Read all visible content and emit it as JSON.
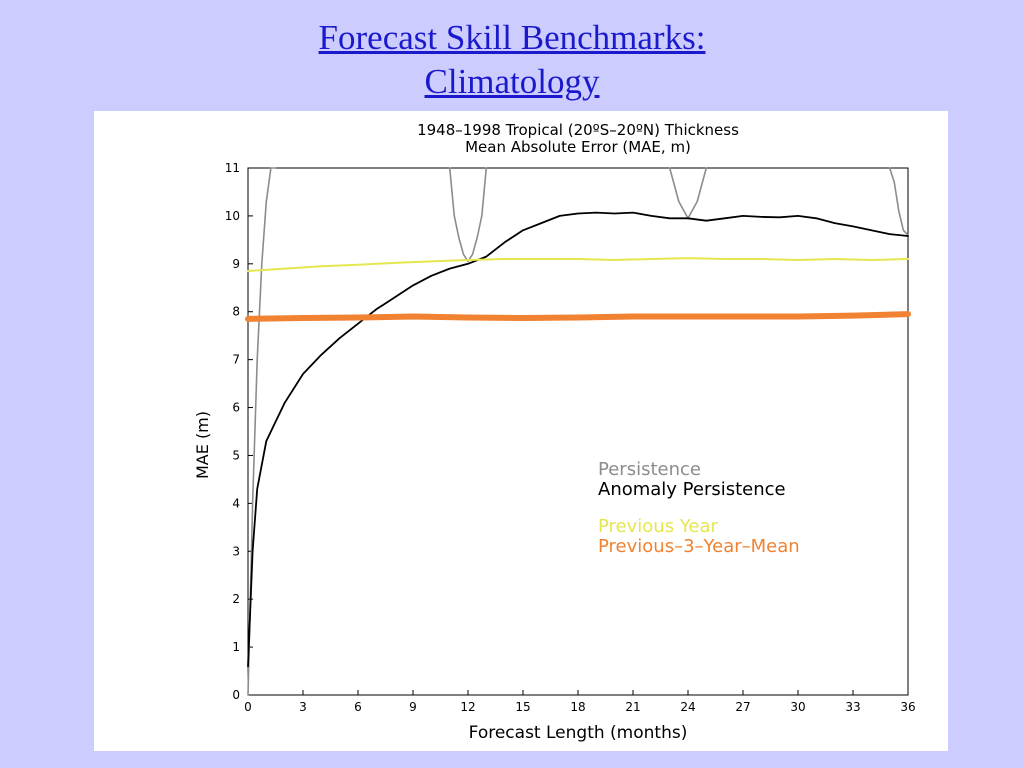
{
  "slide": {
    "title_line1": "Forecast Skill Benchmarks:",
    "title_line2": "Climatology"
  },
  "colors": {
    "background": "#ccccff",
    "title": "#1a1acc",
    "persistence": "#8c8c8c",
    "anomaly_persistence": "#000000",
    "previous_year": "#e6e650",
    "previous_3_year_mean": "#f08232"
  },
  "chart_data": {
    "type": "line",
    "title": "1948–1998 Tropical (20ºS–20ºN) Thickness",
    "subtitle": "Mean Absolute Error (MAE, m)",
    "xlabel": "Forecast Length (months)",
    "ylabel": "MAE (m)",
    "xlim": [
      0,
      36
    ],
    "ylim": [
      0,
      11
    ],
    "xticks": [
      0,
      3,
      6,
      9,
      12,
      15,
      18,
      21,
      24,
      27,
      30,
      33,
      36
    ],
    "yticks": [
      0,
      1,
      2,
      3,
      4,
      5,
      6,
      7,
      8,
      9,
      10,
      11
    ],
    "grid": false,
    "legend_position": "right-middle",
    "series": [
      {
        "name": "Persistence",
        "key": "persistence",
        "segments": [
          {
            "x": [
              0,
              0.25,
              0.5,
              0.75,
              1.0,
              1.25,
              1.5
            ],
            "y": [
              0,
              4.0,
              7.0,
              9.0,
              10.3,
              11.0,
              11.0
            ]
          },
          {
            "x": [
              11.0,
              11.25,
              11.5,
              11.75,
              12.0,
              12.25,
              12.5,
              12.75,
              13.0
            ],
            "y": [
              11.0,
              10.0,
              9.55,
              9.2,
              9.05,
              9.2,
              9.55,
              10.0,
              11.0
            ]
          },
          {
            "x": [
              23.0,
              23.5,
              24.0,
              24.5,
              25.0
            ],
            "y": [
              11.0,
              10.3,
              9.95,
              10.3,
              11.0
            ]
          },
          {
            "x": [
              35.0,
              35.25,
              35.5,
              35.75,
              36.0
            ],
            "y": [
              11.0,
              10.7,
              10.1,
              9.7,
              9.6
            ]
          }
        ]
      },
      {
        "name": "Anomaly Persistence",
        "key": "anomaly_persistence",
        "x": [
          0,
          0.25,
          0.5,
          1,
          1.5,
          2,
          3,
          4,
          5,
          6,
          7,
          8,
          9,
          10,
          11,
          12,
          13,
          14,
          15,
          16,
          17,
          18,
          19,
          20,
          21,
          22,
          23,
          24,
          25,
          26,
          27,
          28,
          29,
          30,
          31,
          32,
          33,
          34,
          35,
          36
        ],
        "y": [
          0.6,
          3.0,
          4.3,
          5.3,
          5.7,
          6.1,
          6.7,
          7.1,
          7.45,
          7.75,
          8.05,
          8.3,
          8.55,
          8.75,
          8.9,
          9.0,
          9.15,
          9.45,
          9.7,
          9.85,
          10.0,
          10.05,
          10.07,
          10.05,
          10.07,
          10.0,
          9.95,
          9.95,
          9.9,
          9.95,
          10.0,
          9.98,
          9.97,
          10.0,
          9.95,
          9.85,
          9.78,
          9.7,
          9.62,
          9.58
        ]
      },
      {
        "name": "Previous Year",
        "key": "previous_year",
        "x": [
          0,
          2,
          4,
          6,
          8,
          10,
          12,
          14,
          16,
          18,
          20,
          22,
          24,
          26,
          28,
          30,
          32,
          34,
          36
        ],
        "y": [
          8.85,
          8.9,
          8.95,
          8.98,
          9.02,
          9.05,
          9.08,
          9.1,
          9.1,
          9.1,
          9.08,
          9.1,
          9.12,
          9.1,
          9.1,
          9.08,
          9.1,
          9.08,
          9.1
        ]
      },
      {
        "name": "Previous–3–Year–Mean",
        "key": "previous_3_year_mean",
        "x": [
          0,
          3,
          6,
          9,
          12,
          15,
          18,
          21,
          24,
          27,
          30,
          33,
          36
        ],
        "y": [
          7.85,
          7.87,
          7.88,
          7.9,
          7.88,
          7.87,
          7.88,
          7.9,
          7.9,
          7.9,
          7.9,
          7.92,
          7.95
        ]
      }
    ]
  }
}
